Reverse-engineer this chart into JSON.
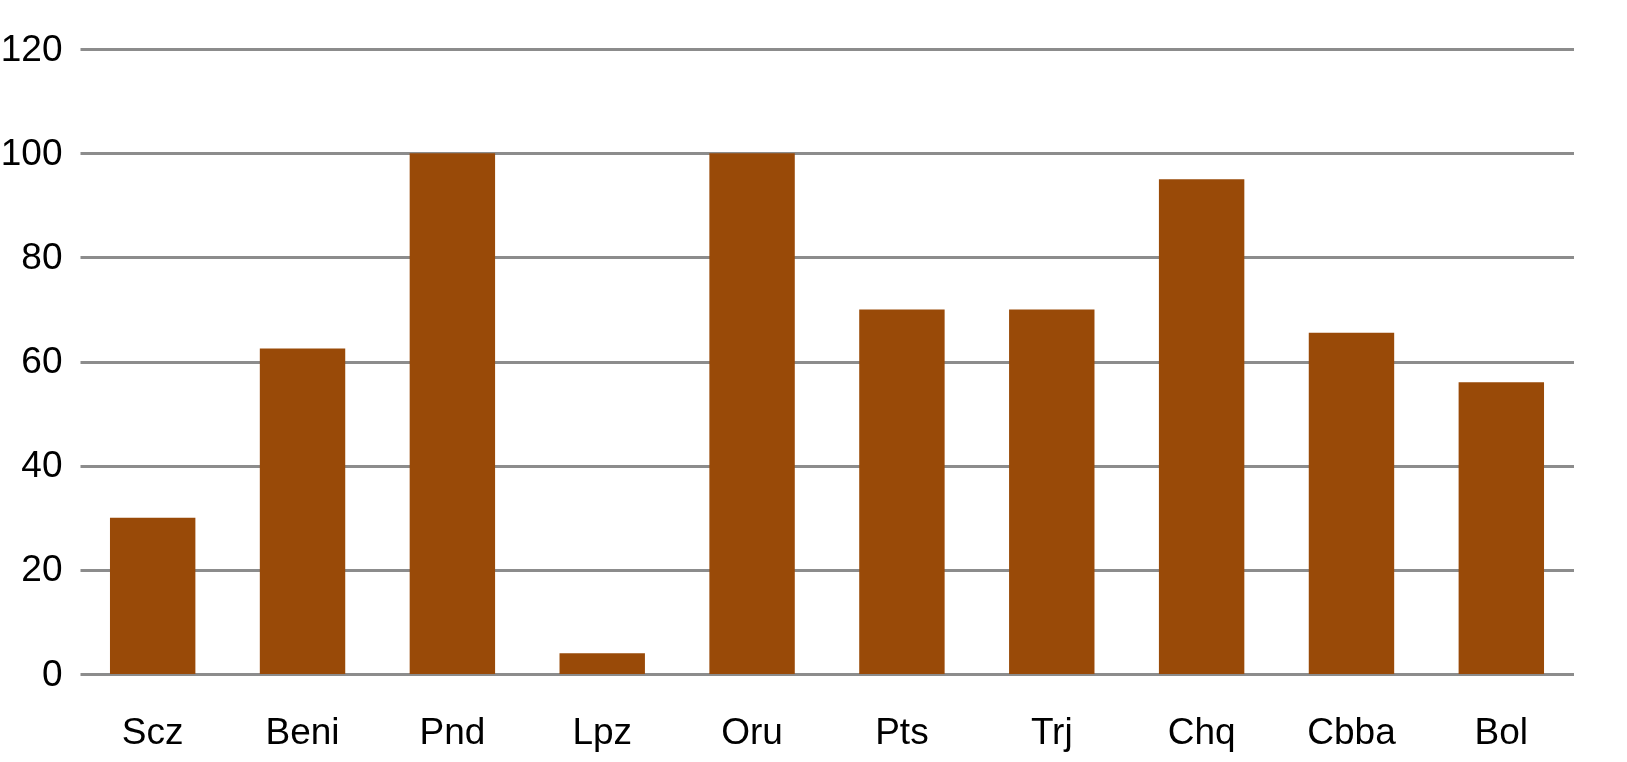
{
  "chart_data": {
    "type": "bar",
    "categories": [
      "Scz",
      "Beni",
      "Pnd",
      "Lpz",
      "Oru",
      "Pts",
      "Trj",
      "Chq",
      "Cbba",
      "Bol"
    ],
    "values": [
      30,
      62.5,
      100,
      4,
      100,
      70,
      70,
      95,
      65.5,
      56
    ],
    "color": "#994a08",
    "ylim": [
      0,
      120
    ],
    "yticks": [
      0,
      20,
      40,
      60,
      80,
      100,
      120
    ],
    "grid": "y"
  }
}
